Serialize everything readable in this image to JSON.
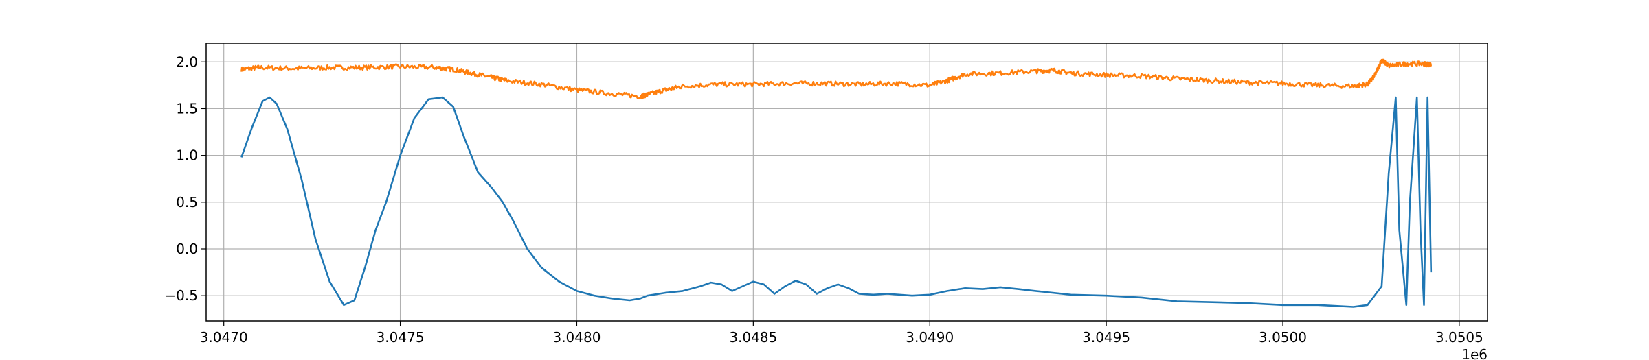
{
  "chart_data": {
    "type": "line",
    "title": "",
    "xlabel": "",
    "ylabel": "",
    "x_offset_label": "1e6",
    "xlim": [
      3.04695,
      3.05058
    ],
    "ylim": [
      -0.77,
      2.2
    ],
    "grid": true,
    "legend": "none",
    "x_ticks": [
      {
        "value": 3.047,
        "label": "3.0470"
      },
      {
        "value": 3.0475,
        "label": "3.0475"
      },
      {
        "value": 3.048,
        "label": "3.0480"
      },
      {
        "value": 3.0485,
        "label": "3.0485"
      },
      {
        "value": 3.049,
        "label": "3.0490"
      },
      {
        "value": 3.0495,
        "label": "3.0495"
      },
      {
        "value": 3.05,
        "label": "3.0500"
      },
      {
        "value": 3.0505,
        "label": "3.0505"
      }
    ],
    "y_ticks": [
      {
        "value": -0.5,
        "label": "−0.5"
      },
      {
        "value": 0.0,
        "label": "0.0"
      },
      {
        "value": 0.5,
        "label": "0.5"
      },
      {
        "value": 1.0,
        "label": "1.0"
      },
      {
        "value": 1.5,
        "label": "1.5"
      },
      {
        "value": 2.0,
        "label": "2.0"
      }
    ],
    "series": [
      {
        "color": "#1f77b4",
        "x": [
          3.04705,
          3.04708,
          3.04711,
          3.04713,
          3.04715,
          3.04718,
          3.04722,
          3.04726,
          3.0473,
          3.04734,
          3.04737,
          3.0474,
          3.04743,
          3.04746,
          3.0475,
          3.04754,
          3.04758,
          3.04762,
          3.04765,
          3.04768,
          3.04772,
          3.04776,
          3.04779,
          3.04782,
          3.04786,
          3.0479,
          3.04795,
          3.048,
          3.04805,
          3.0481,
          3.04815,
          3.04818,
          3.0482,
          3.04825,
          3.0483,
          3.04835,
          3.04838,
          3.04841,
          3.04844,
          3.04847,
          3.0485,
          3.04853,
          3.04856,
          3.04859,
          3.04862,
          3.04865,
          3.04868,
          3.04871,
          3.04874,
          3.04877,
          3.0488,
          3.04884,
          3.04888,
          3.04895,
          3.049,
          3.04905,
          3.0491,
          3.04915,
          3.0492,
          3.04925,
          3.0493,
          3.0494,
          3.0495,
          3.0496,
          3.0497,
          3.0498,
          3.0499,
          3.05,
          3.0501,
          3.0502,
          3.05024,
          3.05028,
          3.0503,
          3.05032,
          3.05033,
          3.05035,
          3.05036,
          3.05038,
          3.05039,
          3.0504,
          3.05041,
          3.05042
        ],
        "y": [
          0.98,
          1.3,
          1.58,
          1.62,
          1.55,
          1.28,
          0.75,
          0.1,
          -0.35,
          -0.6,
          -0.55,
          -0.2,
          0.2,
          0.5,
          1.0,
          1.4,
          1.6,
          1.62,
          1.52,
          1.2,
          0.82,
          0.65,
          0.5,
          0.3,
          0.0,
          -0.2,
          -0.35,
          -0.45,
          -0.5,
          -0.53,
          -0.55,
          -0.53,
          -0.5,
          -0.47,
          -0.45,
          -0.4,
          -0.36,
          -0.38,
          -0.45,
          -0.4,
          -0.35,
          -0.38,
          -0.48,
          -0.4,
          -0.34,
          -0.38,
          -0.48,
          -0.42,
          -0.38,
          -0.42,
          -0.48,
          -0.49,
          -0.48,
          -0.5,
          -0.49,
          -0.45,
          -0.42,
          -0.43,
          -0.41,
          -0.43,
          -0.45,
          -0.49,
          -0.5,
          -0.52,
          -0.56,
          -0.57,
          -0.58,
          -0.6,
          -0.6,
          -0.62,
          -0.6,
          -0.4,
          0.8,
          1.62,
          0.2,
          -0.6,
          0.5,
          1.62,
          0.2,
          -0.6,
          1.62,
          -0.25
        ]
      },
      {
        "color": "#ff7f0e",
        "x": [
          3.04705,
          3.0471,
          3.0472,
          3.0473,
          3.0474,
          3.0475,
          3.0476,
          3.04765,
          3.0477,
          3.04775,
          3.0478,
          3.0479,
          3.048,
          3.0481,
          3.04818,
          3.0482,
          3.04825,
          3.0483,
          3.0484,
          3.0485,
          3.0486,
          3.0487,
          3.0488,
          3.0489,
          3.049,
          3.04905,
          3.0491,
          3.0492,
          3.0493,
          3.04935,
          3.0494,
          3.0495,
          3.0496,
          3.0497,
          3.0498,
          3.0499,
          3.05,
          3.0501,
          3.0502,
          3.05024,
          3.05026,
          3.05028,
          3.0503,
          3.05035,
          3.0504,
          3.05042
        ],
        "y": [
          1.92,
          1.94,
          1.93,
          1.94,
          1.94,
          1.95,
          1.94,
          1.92,
          1.88,
          1.84,
          1.8,
          1.76,
          1.7,
          1.66,
          1.63,
          1.65,
          1.7,
          1.74,
          1.76,
          1.76,
          1.77,
          1.77,
          1.76,
          1.77,
          1.75,
          1.8,
          1.87,
          1.88,
          1.9,
          1.91,
          1.88,
          1.86,
          1.85,
          1.82,
          1.8,
          1.78,
          1.77,
          1.75,
          1.74,
          1.76,
          1.85,
          2.02,
          1.96,
          1.98,
          1.98,
          1.97
        ],
        "noise": 0.025
      }
    ]
  }
}
